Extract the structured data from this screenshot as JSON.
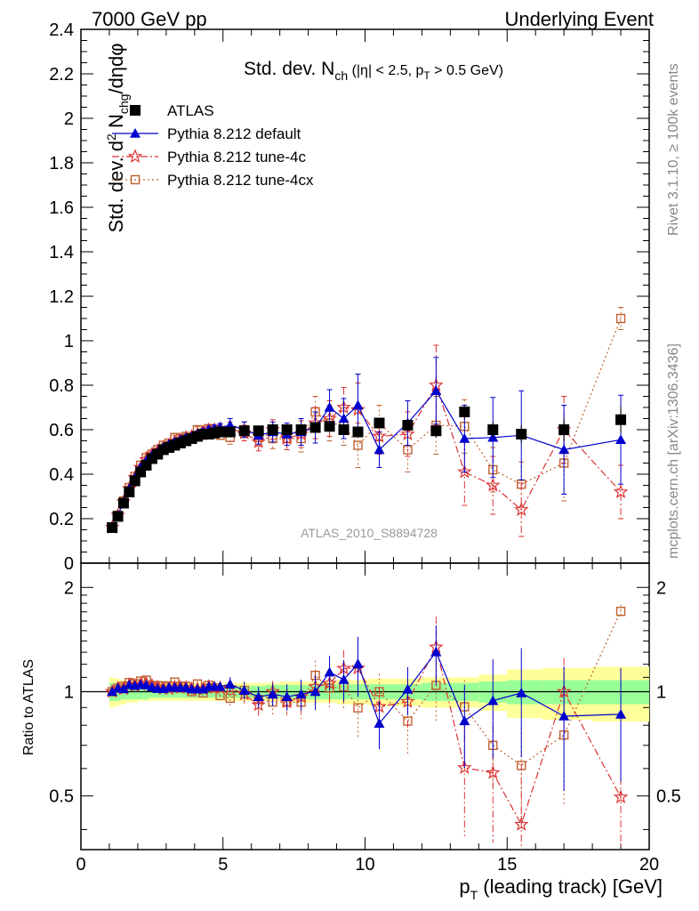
{
  "header": {
    "left": "7000 GeV pp",
    "right": "Underlying Event"
  },
  "side_text": {
    "rivet": "Rivet 3.1.10, ≥ 100k events",
    "mcplots": "mcplots.cern.ch [arXiv:1306.3436]"
  },
  "analysis_id": "ATLAS_2010_S8894728",
  "main_title": {
    "pre": "Std. dev. N",
    "sub": "ch",
    "cut_a": " (|η| < 2.5, p",
    "cut_sub": "T",
    "cut_b": " > 0.5 GeV)"
  },
  "y_label": {
    "a": "Std. dev. d",
    "sup": "2",
    "b": " N",
    "sub": "chg",
    "c": "/dηdφ"
  },
  "ratio_y_label": "Ratio to ATLAS",
  "x_label": {
    "a": "p",
    "sub": "T",
    "b": " (leading track) [GeV]"
  },
  "colors": {
    "data": "#000000",
    "default": "#0000cc",
    "tune4c": "#dd3333",
    "tune4cx": "#c06030",
    "band_inner": "#99ff99",
    "band_outer": "#ffff99"
  },
  "chart_data": {
    "type": "scatter",
    "x_range": [
      0,
      20
    ],
    "y_range": [
      0,
      2.4
    ],
    "x_ticks": [
      0,
      5,
      10,
      15,
      20
    ],
    "y_ticks": [
      0,
      0.2,
      0.4,
      0.6,
      0.8,
      1,
      1.2,
      1.4,
      1.6,
      1.8,
      2,
      2.2,
      2.4
    ],
    "ratio_ticks": [
      0.5,
      1,
      2
    ],
    "ratio_ylim": [
      0.35,
      2.35
    ],
    "ratio_scale": "log",
    "legend_position": "top-left",
    "x": [
      1.1,
      1.3,
      1.5,
      1.7,
      1.9,
      2.1,
      2.3,
      2.5,
      2.7,
      2.9,
      3.1,
      3.3,
      3.5,
      3.7,
      3.9,
      4.1,
      4.3,
      4.5,
      4.7,
      4.9,
      5.25,
      5.75,
      6.25,
      6.75,
      7.25,
      7.75,
      8.25,
      8.75,
      9.25,
      9.75,
      10.5,
      11.5,
      12.5,
      13.5,
      14.5,
      15.5,
      17.0,
      19.0
    ],
    "series": [
      {
        "name": "ATLAS",
        "key": "data",
        "marker": "square",
        "values": [
          0.16,
          0.21,
          0.27,
          0.32,
          0.37,
          0.41,
          0.44,
          0.47,
          0.49,
          0.51,
          0.52,
          0.53,
          0.54,
          0.55,
          0.56,
          0.57,
          0.58,
          0.58,
          0.585,
          0.59,
          0.59,
          0.595,
          0.595,
          0.6,
          0.6,
          0.6,
          0.61,
          0.615,
          0.6,
          0.59,
          0.63,
          0.62,
          0.595,
          0.68,
          0.6,
          0.58,
          0.6,
          0.645
        ],
        "errors": [
          0.003,
          0.003,
          0.004,
          0.004,
          0.005,
          0.005,
          0.005,
          0.006,
          0.006,
          0.006,
          0.007,
          0.007,
          0.007,
          0.008,
          0.008,
          0.008,
          0.009,
          0.009,
          0.01,
          0.01,
          0.01,
          0.01,
          0.012,
          0.012,
          0.013,
          0.014,
          0.015,
          0.016,
          0.017,
          0.018,
          0.02,
          0.025,
          0.03,
          0.03,
          0.035,
          0.04,
          0.05,
          0.06
        ],
        "band_inner": [
          0.06,
          0.06,
          0.05,
          0.05,
          0.05,
          0.05,
          0.05,
          0.04,
          0.04,
          0.04,
          0.04,
          0.04,
          0.04,
          0.04,
          0.04,
          0.04,
          0.04,
          0.04,
          0.04,
          0.04,
          0.04,
          0.04,
          0.04,
          0.045,
          0.045,
          0.045,
          0.05,
          0.05,
          0.05,
          0.05,
          0.05,
          0.05,
          0.06,
          0.06,
          0.07,
          0.08,
          0.08,
          0.08
        ],
        "band_outer": [
          0.1,
          0.09,
          0.08,
          0.07,
          0.07,
          0.06,
          0.06,
          0.06,
          0.06,
          0.06,
          0.06,
          0.06,
          0.06,
          0.06,
          0.06,
          0.06,
          0.06,
          0.06,
          0.06,
          0.06,
          0.06,
          0.06,
          0.06,
          0.06,
          0.07,
          0.07,
          0.07,
          0.07,
          0.08,
          0.08,
          0.09,
          0.09,
          0.1,
          0.1,
          0.12,
          0.16,
          0.17,
          0.18
        ]
      },
      {
        "name": "Pythia 8.212 default",
        "key": "default",
        "marker": "triangle",
        "line": "solid",
        "values": [
          0.16,
          0.215,
          0.275,
          0.335,
          0.385,
          0.43,
          0.46,
          0.485,
          0.5,
          0.52,
          0.535,
          0.545,
          0.555,
          0.565,
          0.57,
          0.58,
          0.59,
          0.6,
          0.605,
          0.61,
          0.62,
          0.6,
          0.575,
          0.59,
          0.58,
          0.59,
          0.61,
          0.7,
          0.65,
          0.71,
          0.51,
          0.63,
          0.775,
          0.56,
          0.565,
          0.575,
          0.51,
          0.555
        ],
        "errors": [
          0.004,
          0.004,
          0.005,
          0.005,
          0.006,
          0.006,
          0.007,
          0.007,
          0.008,
          0.008,
          0.009,
          0.01,
          0.01,
          0.011,
          0.012,
          0.013,
          0.014,
          0.015,
          0.016,
          0.018,
          0.03,
          0.035,
          0.04,
          0.045,
          0.05,
          0.06,
          0.07,
          0.08,
          0.09,
          0.14,
          0.08,
          0.1,
          0.15,
          0.15,
          0.18,
          0.2,
          0.2,
          0.2
        ]
      },
      {
        "name": "Pythia 8.212 tune-4c",
        "key": "tune4c",
        "marker": "star",
        "line": "dashdot",
        "values": [
          0.16,
          0.215,
          0.275,
          0.335,
          0.385,
          0.43,
          0.465,
          0.49,
          0.505,
          0.52,
          0.53,
          0.545,
          0.555,
          0.565,
          0.57,
          0.58,
          0.59,
          0.6,
          0.6,
          0.605,
          0.605,
          0.585,
          0.545,
          0.6,
          0.56,
          0.58,
          0.63,
          0.65,
          0.7,
          0.69,
          0.57,
          0.58,
          0.8,
          0.41,
          0.35,
          0.24,
          0.6,
          0.32
        ],
        "errors": [
          0.004,
          0.004,
          0.005,
          0.005,
          0.006,
          0.006,
          0.007,
          0.007,
          0.008,
          0.008,
          0.009,
          0.01,
          0.01,
          0.011,
          0.012,
          0.013,
          0.014,
          0.015,
          0.016,
          0.018,
          0.03,
          0.035,
          0.04,
          0.045,
          0.05,
          0.06,
          0.07,
          0.08,
          0.09,
          0.12,
          0.08,
          0.1,
          0.18,
          0.15,
          0.13,
          0.12,
          0.15,
          0.12
        ]
      },
      {
        "name": "Pythia 8.212 tune-4cx",
        "key": "tune4cx",
        "marker": "opensquare",
        "line": "dotted",
        "values": [
          0.16,
          0.215,
          0.28,
          0.34,
          0.39,
          0.44,
          0.475,
          0.49,
          0.51,
          0.53,
          0.54,
          0.565,
          0.56,
          0.57,
          0.56,
          0.6,
          0.575,
          0.605,
          0.6,
          0.575,
          0.565,
          0.6,
          0.565,
          0.56,
          0.56,
          0.56,
          0.68,
          0.63,
          0.62,
          0.53,
          0.63,
          0.51,
          0.62,
          0.615,
          0.42,
          0.355,
          0.45,
          1.1
        ],
        "errors": [
          0.004,
          0.004,
          0.005,
          0.005,
          0.006,
          0.006,
          0.007,
          0.007,
          0.008,
          0.008,
          0.009,
          0.01,
          0.01,
          0.011,
          0.012,
          0.013,
          0.014,
          0.015,
          0.016,
          0.018,
          0.03,
          0.035,
          0.04,
          0.045,
          0.05,
          0.06,
          0.07,
          0.08,
          0.09,
          0.1,
          0.08,
          0.1,
          0.13,
          0.12,
          0.1,
          0.1,
          0.17,
          0.05
        ]
      }
    ]
  }
}
